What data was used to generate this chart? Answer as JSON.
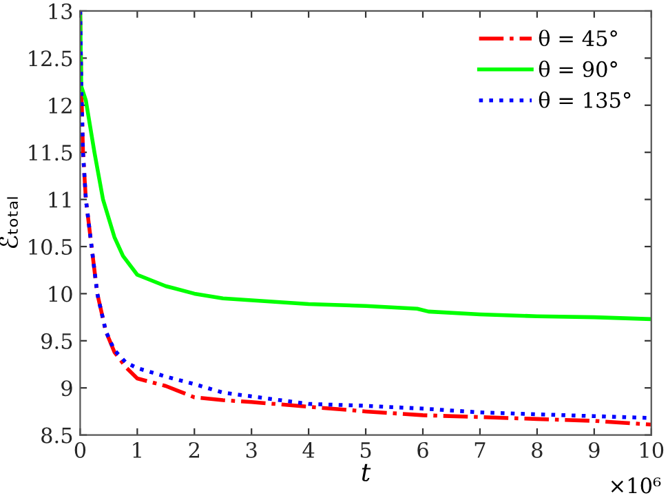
{
  "chart_data": {
    "type": "line",
    "xlabel": "t",
    "ylabel": "ℰₜₒₜₐₗ",
    "xlim": [
      0,
      10
    ],
    "ylim": [
      8.5,
      13
    ],
    "xticks": [
      0,
      1,
      2,
      3,
      4,
      5,
      6,
      7,
      8,
      9,
      10
    ],
    "yticks": [
      8.5,
      9,
      9.5,
      10,
      10.5,
      11,
      11.5,
      12,
      12.5,
      13
    ],
    "annotations": [
      "×10⁶"
    ],
    "legend": "top right",
    "grid": false,
    "series": [
      {
        "name": "θ = 45°",
        "color": "#ff0000",
        "line_style": "dashdot",
        "x": [
          0,
          0.02,
          0.05,
          0.1,
          0.2,
          0.3,
          0.45,
          0.6,
          0.8,
          1,
          1.5,
          2,
          2.5,
          3,
          4,
          5,
          6,
          7,
          8,
          9,
          10
        ],
        "values": [
          13,
          12.2,
          11.5,
          11,
          10.5,
          10,
          9.6,
          9.38,
          9.22,
          9.1,
          9.02,
          8.9,
          8.87,
          8.85,
          8.8,
          8.75,
          8.71,
          8.69,
          8.67,
          8.65,
          8.61
        ]
      },
      {
        "name": "θ = 90°",
        "color": "#00ff00",
        "line_style": "solid",
        "x": [
          0,
          0.02,
          0.1,
          0.25,
          0.4,
          0.6,
          0.75,
          1,
          1.5,
          2,
          2.5,
          3,
          4,
          5,
          5.9,
          6.1,
          7,
          8,
          9,
          10
        ],
        "values": [
          13,
          12.2,
          12.05,
          11.5,
          11,
          10.6,
          10.4,
          10.2,
          10.08,
          10.0,
          9.95,
          9.93,
          9.89,
          9.87,
          9.84,
          9.81,
          9.78,
          9.76,
          9.75,
          9.73
        ]
      },
      {
        "name": "θ = 135°",
        "color": "#0000ff",
        "line_style": "dotted",
        "x": [
          0,
          0.02,
          0.05,
          0.1,
          0.2,
          0.3,
          0.45,
          0.6,
          0.8,
          1,
          1.5,
          2,
          2.5,
          3,
          4,
          5,
          6,
          7,
          8,
          9,
          10
        ],
        "values": [
          13,
          12.2,
          11.5,
          11,
          10.5,
          10,
          9.6,
          9.4,
          9.27,
          9.21,
          9.12,
          9.04,
          8.95,
          8.91,
          8.83,
          8.81,
          8.78,
          8.74,
          8.72,
          8.7,
          8.68
        ]
      }
    ]
  }
}
